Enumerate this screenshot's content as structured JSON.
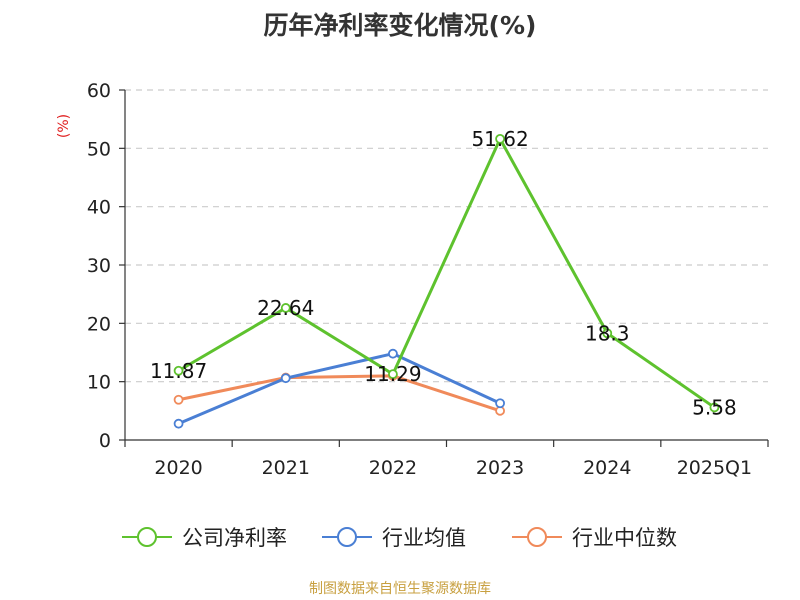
{
  "title": "历年净利率变化情况(%)",
  "source": "制图数据来自恒生聚源数据库",
  "colors": {
    "axis": "#333333",
    "grid": "#cccccc",
    "unit": "#e02020"
  },
  "chart_data": {
    "type": "line",
    "title": "历年净利率变化情况(%)",
    "ylabel": "(%)",
    "xlabel": "",
    "categories": [
      "2020",
      "2021",
      "2022",
      "2023",
      "2024",
      "2025Q1"
    ],
    "ylim": [
      0,
      60
    ],
    "yticks": [
      0,
      10,
      20,
      30,
      40,
      50,
      60
    ],
    "grid": true,
    "legend_position": "bottom",
    "series": [
      {
        "name": "公司净利率",
        "color": "#5ec22e",
        "values": [
          11.87,
          22.64,
          11.29,
          51.62,
          18.3,
          5.58
        ],
        "labels": [
          "11.87",
          "22.64",
          "11.29",
          "51.62",
          "18.3",
          "5.58"
        ]
      },
      {
        "name": "行业均值",
        "color": "#4a7fd4",
        "values": [
          2.8,
          10.6,
          14.8,
          6.3,
          null,
          null
        ]
      },
      {
        "name": "行业中位数",
        "color": "#f08a5a",
        "values": [
          6.9,
          10.7,
          11.0,
          5.0,
          null,
          null
        ]
      }
    ]
  }
}
